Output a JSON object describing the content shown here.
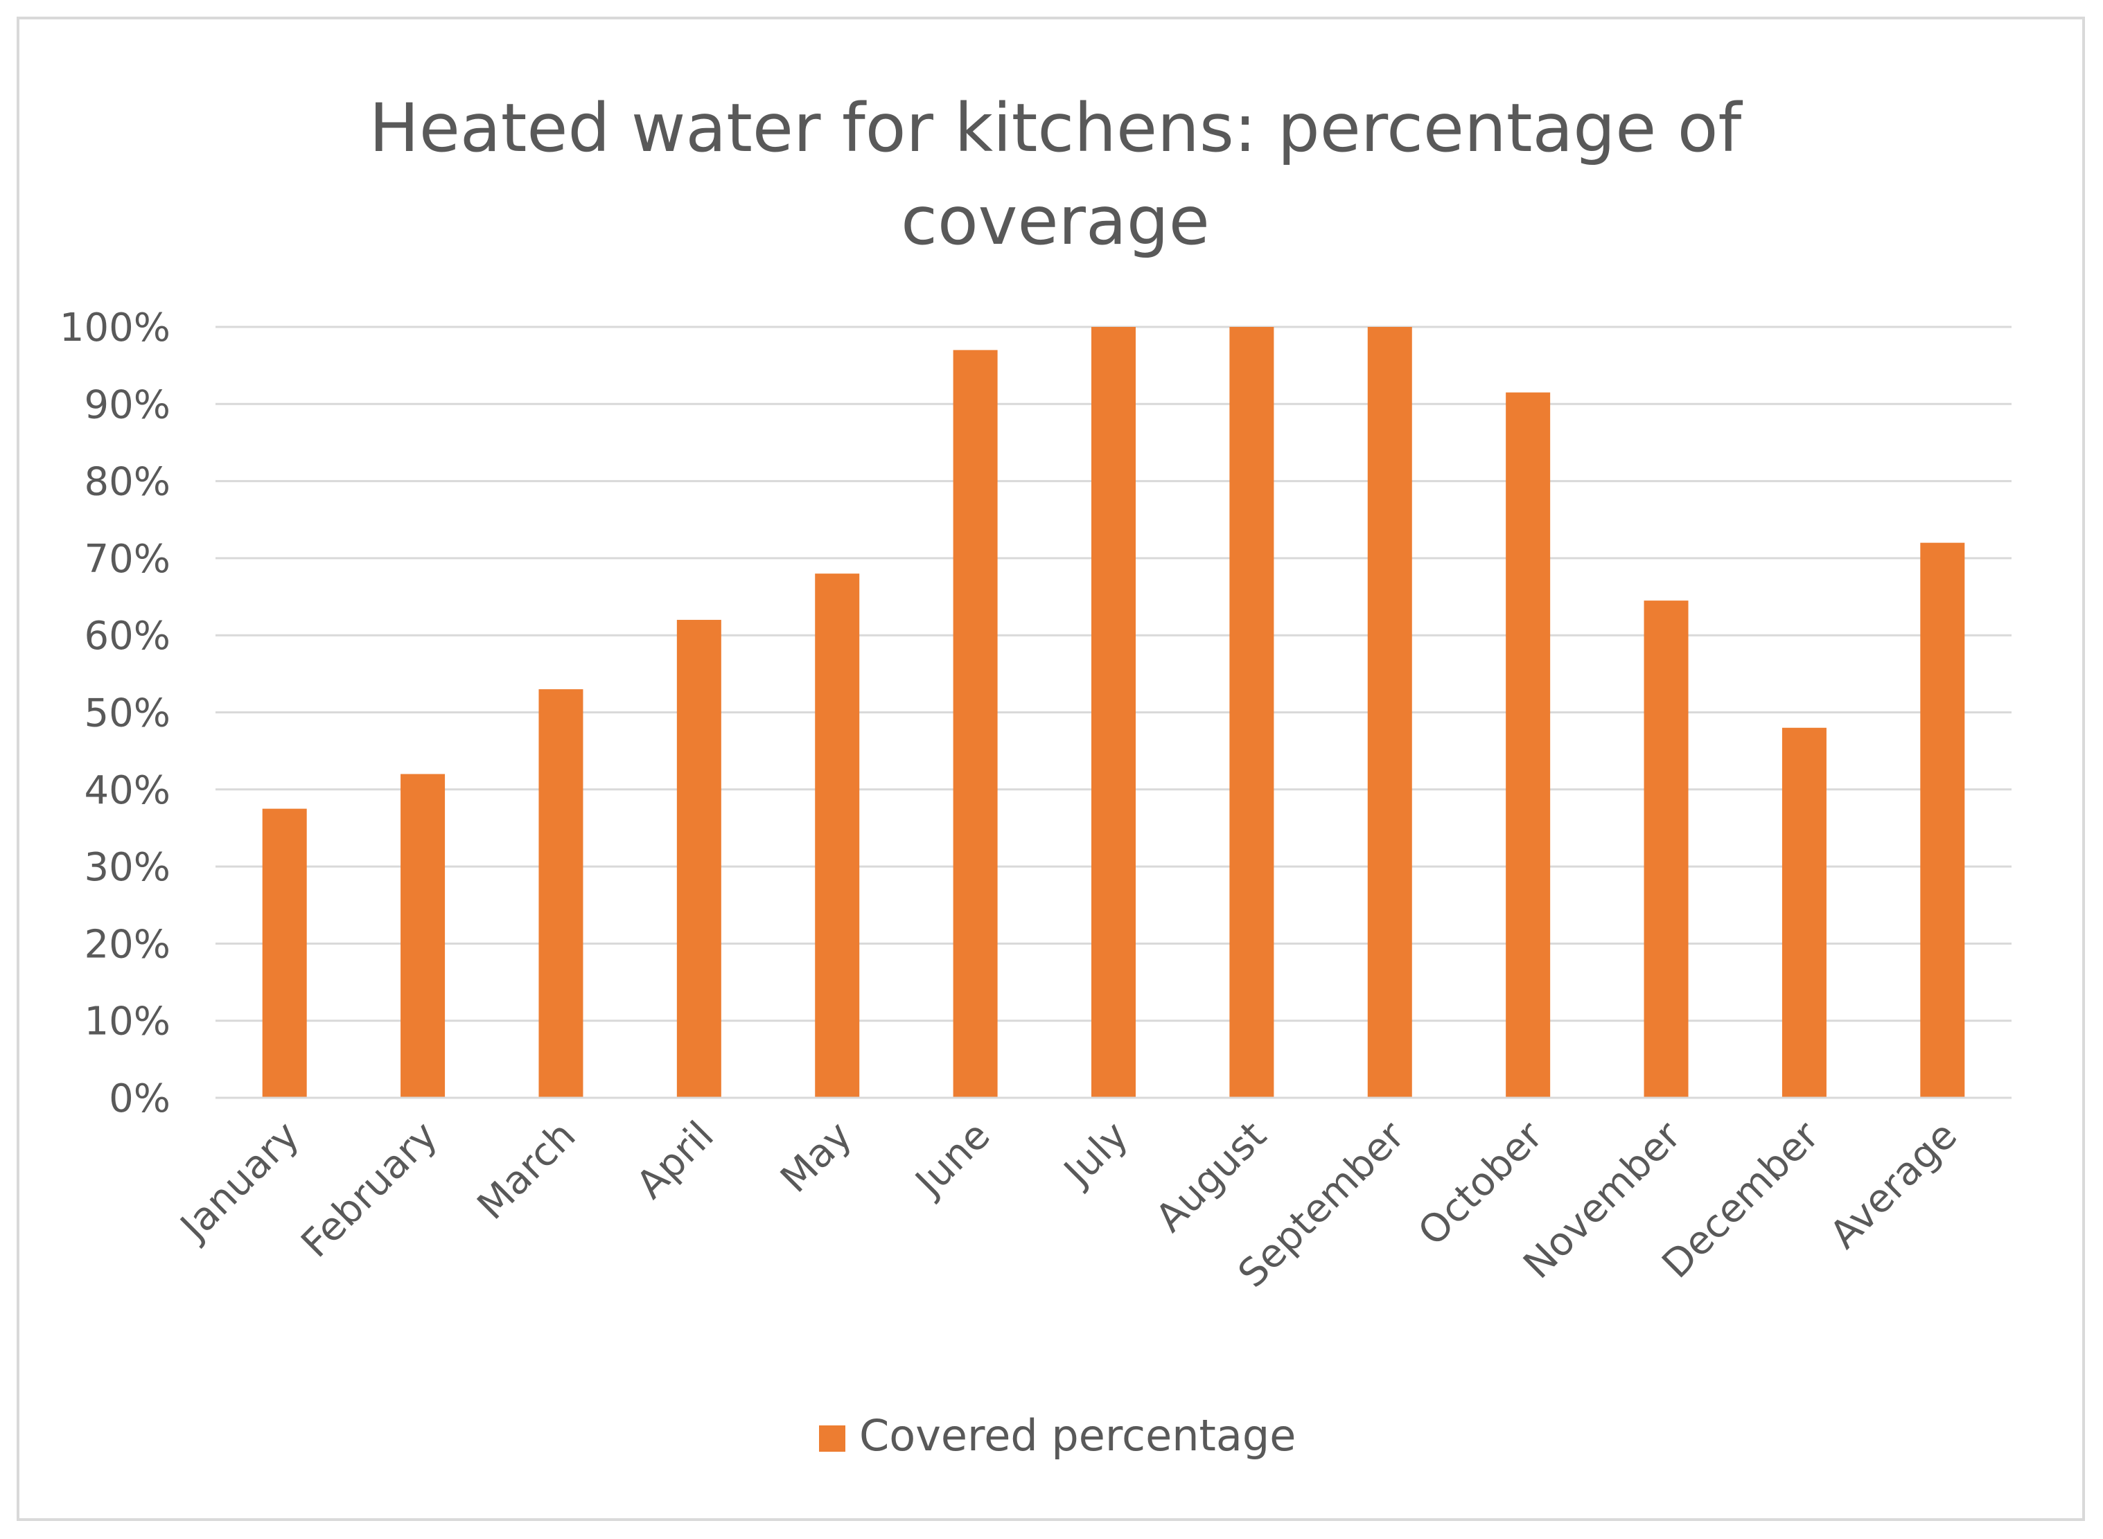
{
  "chart_data": {
    "type": "bar",
    "title": "Heated water for kitchens: percentage of coverage",
    "title_lines": [
      "Heated water for kitchens: percentage of",
      "coverage"
    ],
    "xlabel": "",
    "ylabel": "",
    "categories": [
      "January",
      "February",
      "March",
      "April",
      "May",
      "June",
      "July",
      "August",
      "September",
      "October",
      "November",
      "December",
      "Average"
    ],
    "series": [
      {
        "name": "Covered percentage",
        "color": "#ED7D31",
        "values": [
          37.5,
          42,
          53,
          62,
          68,
          97,
          100,
          100,
          100,
          91.5,
          64.5,
          48,
          72
        ]
      }
    ],
    "ylim": [
      0,
      100
    ],
    "yticks": [
      "0%",
      "10%",
      "20%",
      "30%",
      "40%",
      "50%",
      "60%",
      "70%",
      "80%",
      "90%",
      "100%"
    ],
    "grid": true,
    "legend": "bottom"
  }
}
